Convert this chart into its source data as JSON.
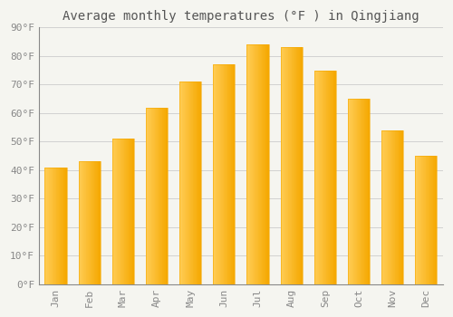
{
  "title": "Average monthly temperatures (°F ) in Qingjiang",
  "months": [
    "Jan",
    "Feb",
    "Mar",
    "Apr",
    "May",
    "Jun",
    "Jul",
    "Aug",
    "Sep",
    "Oct",
    "Nov",
    "Dec"
  ],
  "values": [
    41,
    43,
    51,
    62,
    71,
    77,
    84,
    83,
    75,
    65,
    54,
    45
  ],
  "bar_color_left": "#FFCC55",
  "bar_color_right": "#F5A800",
  "background_color": "#F5F5F0",
  "plot_bg_color": "#F5F5F0",
  "grid_color": "#CCCCCC",
  "ylim": [
    0,
    90
  ],
  "yticks": [
    0,
    10,
    20,
    30,
    40,
    50,
    60,
    70,
    80,
    90
  ],
  "title_fontsize": 10,
  "tick_fontsize": 8,
  "tick_color": "#888888",
  "title_color": "#555555",
  "bar_width": 0.65
}
